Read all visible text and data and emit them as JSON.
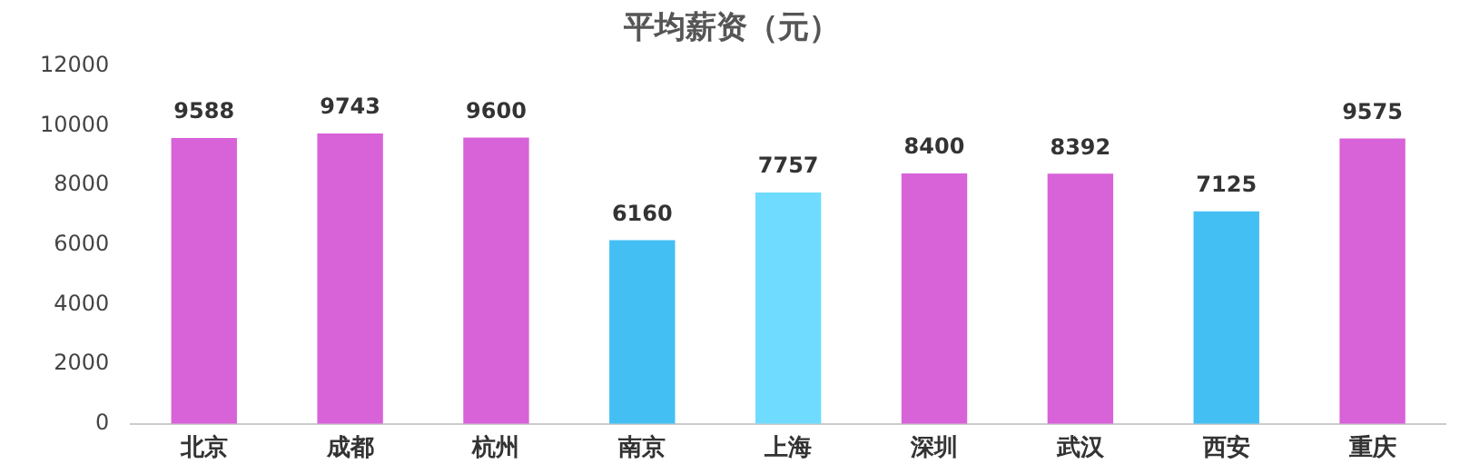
{
  "chart_data": {
    "type": "bar",
    "title": "平均薪资（元）",
    "categories": [
      "北京",
      "成都",
      "杭州",
      "南京",
      "上海",
      "深圳",
      "武汉",
      "西安",
      "重庆"
    ],
    "values": [
      9588,
      9743,
      9600,
      6160,
      7757,
      8400,
      8392,
      7125,
      9575
    ],
    "colors": [
      "#d862d8",
      "#d862d8",
      "#d862d8",
      "#44bff4",
      "#6fdcff",
      "#d862d8",
      "#d862d8",
      "#44bff4",
      "#d862d8"
    ],
    "ylim": [
      0,
      12000
    ],
    "yticks": [
      0,
      2000,
      4000,
      6000,
      8000,
      10000,
      12000
    ],
    "grid": false,
    "legend": false,
    "data_labels": true
  }
}
